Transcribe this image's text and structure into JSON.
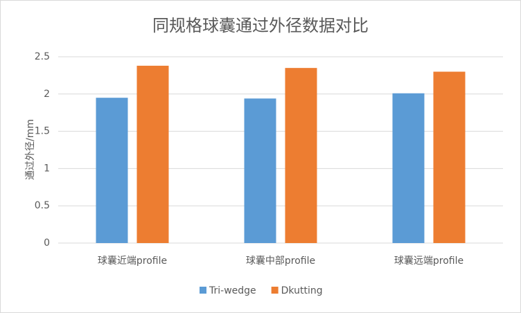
{
  "chart_data": {
    "type": "bar",
    "title": "同规格球囊通过外径数据对比",
    "ylabel": "通过外径/mm",
    "categories": [
      "球囊近端profile",
      "球囊中部profile",
      "球囊远端profile"
    ],
    "series": [
      {
        "name": "Tri-wedge",
        "color": "#5b9bd5",
        "values": [
          1.95,
          1.94,
          2.01
        ]
      },
      {
        "name": "Dkutting",
        "color": "#ed7d31",
        "values": [
          2.38,
          2.35,
          2.3
        ]
      }
    ],
    "ylim": [
      0,
      2.5
    ],
    "yticks": [
      0,
      0.5,
      1,
      1.5,
      2,
      2.5
    ],
    "grid": true,
    "legend": "bottom"
  }
}
